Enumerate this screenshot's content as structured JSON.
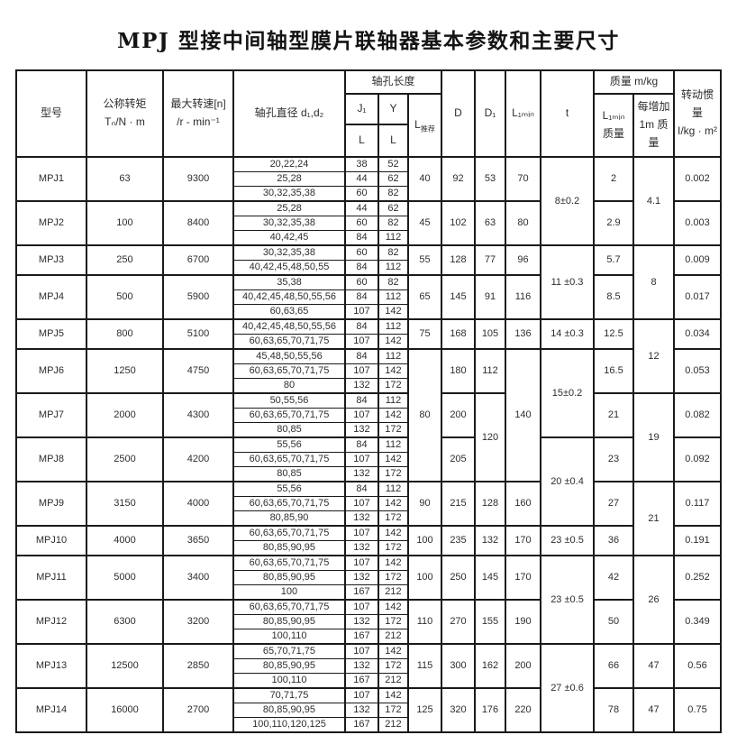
{
  "page": {
    "title": "MPJ 型接中间轴型膜片联轴器基本参数和主要尺寸"
  },
  "colors": {
    "background": "#ffffff",
    "border": "#1a1a1a",
    "text": "#2d2d2d"
  },
  "table": {
    "header": {
      "model": "型号",
      "torque": "公称转矩\nTₙ/N · m",
      "speed": "最大转速[n]\n/r - min⁻¹",
      "bore_diameter": "轴孔直径 d₁,d₂",
      "bore_length": "轴孔长度",
      "j1": "J₁",
      "y": "Y",
      "l": "L",
      "l_rec_main": "L",
      "l_rec_sub": "推荐",
      "d": "D",
      "d1": "D₁",
      "l1min": "L₁ₘᵢₙ",
      "t": "t",
      "mass_group": "质量  m/kg",
      "l1min_mass": "L₁ₘᵢₙ\n质量",
      "added_mass": "每增加\n1m 质量",
      "inertia": "转动惯量\nI/kg · m²"
    },
    "groups": [
      {
        "model": "MPJ1",
        "torque": "63",
        "speed": "9300",
        "rows": [
          [
            "20,22,24",
            "38",
            "52"
          ],
          [
            "25,28",
            "44",
            "62"
          ],
          [
            "30,32,35,38",
            "60",
            "82"
          ]
        ],
        "l_rec": "40",
        "d": "92",
        "d1": "53",
        "l1min": "70",
        "t": "8±0.2",
        "t_span": 2,
        "mass": "2",
        "madd": "4.1",
        "madd_span": 2,
        "inertia": "0.002"
      },
      {
        "model": "MPJ2",
        "torque": "100",
        "speed": "8400",
        "rows": [
          [
            "25,28",
            "44",
            "62"
          ],
          [
            "30,32,35,38",
            "60",
            "82"
          ],
          [
            "40,42,45",
            "84",
            "112"
          ]
        ],
        "l_rec": "45",
        "d": "102",
        "d1": "63",
        "l1min": "80",
        "mass": "2.9",
        "inertia": "0.003"
      },
      {
        "model": "MPJ3",
        "torque": "250",
        "speed": "6700",
        "rows": [
          [
            "30,32,35,38",
            "60",
            "82"
          ],
          [
            "40,42,45,48,50,55",
            "84",
            "112"
          ]
        ],
        "l_rec": "55",
        "d": "128",
        "d1": "77",
        "l1min": "96",
        "t": "11 ±0.3",
        "t_span": 2,
        "mass": "5.7",
        "madd": "8",
        "madd_span": 2,
        "inertia": "0.009"
      },
      {
        "model": "MPJ4",
        "torque": "500",
        "speed": "5900",
        "rows": [
          [
            "35,38",
            "60",
            "82"
          ],
          [
            "40,42,45,48,50,55,56",
            "84",
            "112"
          ],
          [
            "60,63,65",
            "107",
            "142"
          ]
        ],
        "l_rec": "65",
        "d": "145",
        "d1": "91",
        "l1min": "116",
        "mass": "8.5",
        "inertia": "0.017"
      },
      {
        "model": "MPJ5",
        "torque": "800",
        "speed": "5100",
        "rows": [
          [
            "40,42,45,48,50,55,56",
            "84",
            "112"
          ],
          [
            "60,63,65,70,71,75",
            "107",
            "142"
          ]
        ],
        "l_rec": "75",
        "d": "168",
        "d1": "105",
        "l1min": "136",
        "t": "14 ±0.3",
        "t_span": 1,
        "mass": "12.5",
        "madd": "12",
        "madd_span": 2,
        "inertia": "0.034"
      },
      {
        "model": "MPJ6",
        "torque": "1250",
        "speed": "4750",
        "rows": [
          [
            "45,48,50,55,56",
            "84",
            "112"
          ],
          [
            "60,63,65,70,71,75",
            "107",
            "142"
          ],
          [
            "80",
            "132",
            "172"
          ]
        ],
        "l_rec": "80",
        "l_rec_span": 3,
        "d": "180",
        "d1": "112",
        "l1min": "140",
        "l1min_span": 3,
        "t": "15±0.2",
        "t_span": 2,
        "mass": "16.5",
        "inertia": "0.053"
      },
      {
        "model": "MPJ7",
        "torque": "2000",
        "speed": "4300",
        "rows": [
          [
            "50,55,56",
            "84",
            "112"
          ],
          [
            "60,63,65,70,71,75",
            "107",
            "142"
          ],
          [
            "80,85",
            "132",
            "172"
          ]
        ],
        "d": "200",
        "d1": "120",
        "d1_span": 2,
        "mass": "21",
        "madd": "19",
        "madd_span": 2,
        "inertia": "0.082"
      },
      {
        "model": "MPJ8",
        "torque": "2500",
        "speed": "4200",
        "rows": [
          [
            "55,56",
            "84",
            "112"
          ],
          [
            "60,63,65,70,71,75",
            "107",
            "142"
          ],
          [
            "80,85",
            "132",
            "172"
          ]
        ],
        "d": "205",
        "t": "20 ±0.4",
        "t_span": 2,
        "mass": "23",
        "inertia": "0.092"
      },
      {
        "model": "MPJ9",
        "torque": "3150",
        "speed": "4000",
        "rows": [
          [
            "55,56",
            "84",
            "112"
          ],
          [
            "60,63,65,70,71,75",
            "107",
            "142"
          ],
          [
            "80,85,90",
            "132",
            "172"
          ]
        ],
        "l_rec": "90",
        "d": "215",
        "d1": "128",
        "l1min": "160",
        "mass": "27",
        "madd": "21",
        "madd_span": 2,
        "inertia": "0.117"
      },
      {
        "model": "MPJ10",
        "torque": "4000",
        "speed": "3650",
        "rows": [
          [
            "60,63,65,70,71,75",
            "107",
            "142"
          ],
          [
            "80,85,90,95",
            "132",
            "172"
          ]
        ],
        "l_rec": "100",
        "d": "235",
        "d1": "132",
        "l1min": "170",
        "t": "23 ±0.5",
        "t_span": 1,
        "mass": "36",
        "inertia": "0.191"
      },
      {
        "model": "MPJ11",
        "torque": "5000",
        "speed": "3400",
        "rows": [
          [
            "60,63,65,70,71,75",
            "107",
            "142"
          ],
          [
            "80,85,90,95",
            "132",
            "172"
          ],
          [
            "100",
            "167",
            "212"
          ]
        ],
        "l_rec": "100",
        "d": "250",
        "d1": "145",
        "l1min": "170",
        "t": "23 ±0.5",
        "t_span": 2,
        "mass": "42",
        "madd": "26",
        "madd_span": 2,
        "inertia": "0.252"
      },
      {
        "model": "MPJ12",
        "torque": "6300",
        "speed": "3200",
        "rows": [
          [
            "60,63,65,70,71,75",
            "107",
            "142"
          ],
          [
            "80,85,90,95",
            "132",
            "172"
          ],
          [
            "100,110",
            "167",
            "212"
          ]
        ],
        "l_rec": "110",
        "d": "270",
        "d1": "155",
        "l1min": "190",
        "mass": "50",
        "inertia": "0.349"
      },
      {
        "model": "MPJ13",
        "torque": "12500",
        "speed": "2850",
        "rows": [
          [
            "65,70,71,75",
            "107",
            "142"
          ],
          [
            "80,85,90,95",
            "132",
            "172"
          ],
          [
            "100,110",
            "167",
            "212"
          ]
        ],
        "l_rec": "115",
        "d": "300",
        "d1": "162",
        "l1min": "200",
        "t": "27 ±0.6",
        "t_span": 2,
        "mass": "66",
        "madd": "47",
        "madd_span": 1,
        "inertia": "0.56"
      },
      {
        "model": "MPJ14",
        "torque": "16000",
        "speed": "2700",
        "rows": [
          [
            "70,71,75",
            "107",
            "142"
          ],
          [
            "80,85,90,95",
            "132",
            "172"
          ],
          [
            "100,110,120,125",
            "167",
            "212"
          ]
        ],
        "l_rec": "125",
        "d": "320",
        "d1": "176",
        "l1min": "220",
        "mass": "78",
        "madd": "47",
        "madd_span": 1,
        "inertia": "0.75"
      }
    ]
  }
}
